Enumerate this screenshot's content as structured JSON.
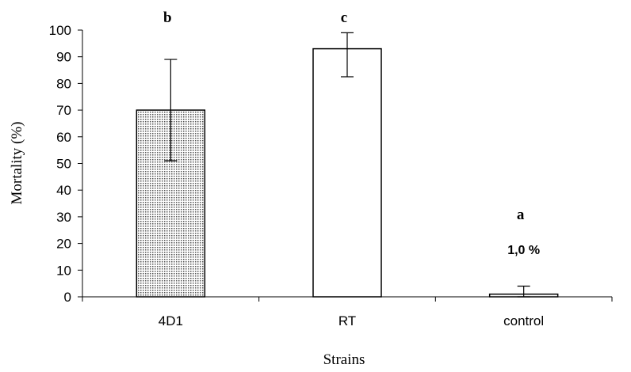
{
  "chart_data": {
    "type": "bar",
    "categories": [
      "4D1",
      "RT",
      "control"
    ],
    "values": [
      70,
      93,
      1
    ],
    "error_bars": [
      {
        "low": 51,
        "high": 89
      },
      {
        "low": 82.5,
        "high": 99
      },
      {
        "low": 0,
        "high": 4
      }
    ],
    "significance_letters": [
      "b",
      "c",
      "a"
    ],
    "annotations": [
      {
        "category": "control",
        "text": "1,0 %"
      }
    ],
    "bar_fills": [
      "dotted",
      "white",
      "white"
    ],
    "title": "",
    "xlabel": "Strains",
    "ylabel": "Mortality (%)",
    "ylim": [
      0,
      100
    ],
    "yticks": [
      0,
      10,
      20,
      30,
      40,
      50,
      60,
      70,
      80,
      90,
      100
    ],
    "grid": false,
    "legend": "none"
  }
}
